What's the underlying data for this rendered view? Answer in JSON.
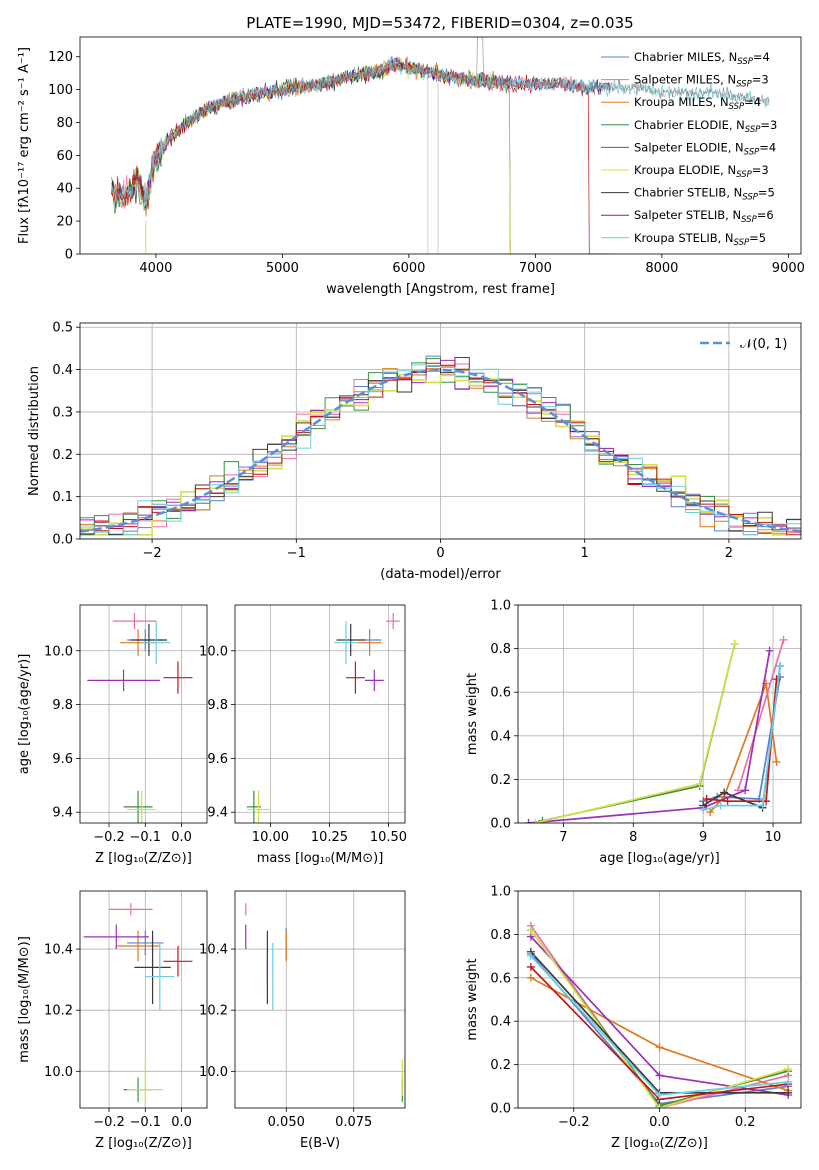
{
  "title": "PLATE=1990, MJD=53472, FIBERID=0304, z=0.035",
  "chart_data": [
    {
      "id": "spectrum",
      "type": "line",
      "xlabel": "wavelength [Angstrom, rest frame]",
      "ylabel": "Flux [fλ10⁻¹⁷ erg cm⁻² s⁻¹ A⁻¹]",
      "xlim": [
        3400,
        9100
      ],
      "ylim": [
        0,
        132
      ],
      "xticks": [
        4000,
        5000,
        6000,
        7000,
        8000,
        9000
      ],
      "yticks": [
        0,
        20,
        40,
        60,
        80,
        100,
        120
      ],
      "legend_position": "top-right",
      "continuum": [
        [
          3650,
          38
        ],
        [
          3750,
          35
        ],
        [
          3850,
          45
        ],
        [
          3920,
          30
        ],
        [
          3980,
          55
        ],
        [
          4100,
          70
        ],
        [
          4250,
          80
        ],
        [
          4400,
          88
        ],
        [
          4600,
          94
        ],
        [
          4800,
          97
        ],
        [
          5000,
          100
        ],
        [
          5200,
          102
        ],
        [
          5400,
          105
        ],
        [
          5600,
          109
        ],
        [
          5800,
          112
        ],
        [
          5900,
          116
        ],
        [
          6000,
          113
        ],
        [
          6200,
          110
        ],
        [
          6400,
          107
        ],
        [
          6600,
          105
        ],
        [
          6800,
          104
        ],
        [
          7000,
          103
        ],
        [
          7200,
          104
        ],
        [
          7400,
          101
        ],
        [
          7600,
          102
        ],
        [
          7800,
          101
        ],
        [
          8000,
          98
        ],
        [
          8200,
          98
        ],
        [
          8400,
          98
        ],
        [
          8600,
          96
        ],
        [
          8800,
          93
        ]
      ],
      "series": [
        {
          "name": "Chabrier MILES, N_SSP=4",
          "label_main": "Chabrier MILES, N",
          "label_sub": "SSP",
          "label_end": "=4",
          "color": "#5b7fd1",
          "drop_at": null
        },
        {
          "name": "Salpeter MILES, N_SSP=3",
          "label_main": "Salpeter MILES, N",
          "label_sub": "SSP",
          "label_end": "=3",
          "color": "#ee6ea6",
          "drop_at": null
        },
        {
          "name": "Kroupa MILES, N_SSP=4",
          "label_main": "Kroupa MILES, N",
          "label_sub": "SSP",
          "label_end": "=4",
          "color": "#e0791f",
          "drop_at": 6800
        },
        {
          "name": "Chabrier ELODIE, N_SSP=3",
          "label_main": "Chabrier ELODIE, N",
          "label_sub": "SSP",
          "label_end": "=3",
          "color": "#3f8f3f",
          "drop_at": 6800
        },
        {
          "name": "Salpeter ELODIE, N_SSP=4",
          "label_main": "Salpeter ELODIE, N",
          "label_sub": "SSP",
          "label_end": "=4",
          "color": "#9b30b8",
          "drop_at": 6800
        },
        {
          "name": "Kroupa ELODIE, N_SSP=3",
          "label_main": "Kroupa ELODIE, N",
          "label_sub": "SSP",
          "label_end": "=3",
          "color": "#d4e04a",
          "drop_at": 6800
        },
        {
          "name": "Chabrier STELIB, N_SSP=5",
          "label_main": "Chabrier STELIB, N",
          "label_sub": "SSP",
          "label_end": "=5",
          "color": "#3a3a3a",
          "drop_at": null
        },
        {
          "name": "Salpeter STELIB, N_SSP=6",
          "label_main": "Salpeter STELIB, N",
          "label_sub": "SSP",
          "label_end": "=6",
          "color": "#c01818",
          "drop_at": 7420
        },
        {
          "name": "Kroupa STELIB, N_SSP=5",
          "label_main": "Kroupa STELIB, N",
          "label_sub": "SSP",
          "label_end": "=5",
          "color": "#6ccfe0",
          "drop_at": null
        }
      ]
    },
    {
      "id": "residuals",
      "type": "histogram",
      "xlabel": "(data-model)/error",
      "ylabel": "Normed distribution",
      "xlim": [
        -2.5,
        2.5
      ],
      "ylim": [
        0,
        0.51
      ],
      "xticks": [
        -2,
        -1,
        0,
        1,
        2
      ],
      "yticks": [
        0.0,
        0.1,
        0.2,
        0.3,
        0.4,
        0.5
      ],
      "reference_label": "𝒩(0, 1)",
      "reference_color": "#5b8fd9"
    },
    {
      "id": "age-vs-Z",
      "type": "scatter-errorbar",
      "xlabel": "Z [log₁₀(Z/Z⊙)]",
      "ylabel": "age  [log₁₀(age/yr)]",
      "xlim": [
        -0.28,
        0.07
      ],
      "ylim": [
        9.36,
        10.17
      ],
      "xticks": [
        -0.2,
        -0.1,
        0.0
      ],
      "yticks": [
        9.4,
        9.6,
        9.8,
        10.0
      ],
      "points": [
        {
          "c": "#5b7fd1",
          "x": -0.1,
          "y": 10.04,
          "xe": 0.05,
          "ye": 0.04
        },
        {
          "c": "#ee6ea6",
          "x": -0.13,
          "y": 10.11,
          "xe": 0.06,
          "ye": 0.03
        },
        {
          "c": "#e0791f",
          "x": -0.12,
          "y": 10.03,
          "xe": 0.05,
          "ye": 0.05
        },
        {
          "c": "#3f8f3f",
          "x": -0.12,
          "y": 9.42,
          "xe": 0.04,
          "ye": 0.06
        },
        {
          "c": "#9b30b8",
          "x": -0.16,
          "y": 9.89,
          "xe": 0.1,
          "ye": 0.04
        },
        {
          "c": "#d4e04a",
          "x": -0.11,
          "y": 9.41,
          "xe": 0.04,
          "ye": 0.07
        },
        {
          "c": "#3a3a3a",
          "x": -0.09,
          "y": 10.04,
          "xe": 0.05,
          "ye": 0.06
        },
        {
          "c": "#c01818",
          "x": -0.01,
          "y": 9.9,
          "xe": 0.04,
          "ye": 0.06
        },
        {
          "c": "#6ccfe0",
          "x": -0.07,
          "y": 10.03,
          "xe": 0.04,
          "ye": 0.08
        }
      ]
    },
    {
      "id": "age-vs-mass",
      "type": "scatter-errorbar",
      "xlabel": "mass [log₁₀(M/M⊙)]",
      "xlim": [
        9.85,
        10.57
      ],
      "ylim": [
        9.36,
        10.17
      ],
      "xticks": [
        10.0,
        10.25,
        10.5
      ],
      "yticks": [
        9.4,
        9.6,
        9.8,
        10.0
      ],
      "points": [
        {
          "c": "#5b7fd1",
          "x": 10.42,
          "y": 10.04,
          "xe": 0.05,
          "ye": 0.04
        },
        {
          "c": "#ee6ea6",
          "x": 10.52,
          "y": 10.11,
          "xe": 0.03,
          "ye": 0.03
        },
        {
          "c": "#e0791f",
          "x": 10.42,
          "y": 10.03,
          "xe": 0.05,
          "ye": 0.05
        },
        {
          "c": "#3f8f3f",
          "x": 9.93,
          "y": 9.42,
          "xe": 0.03,
          "ye": 0.06
        },
        {
          "c": "#9b30b8",
          "x": 10.44,
          "y": 9.89,
          "xe": 0.04,
          "ye": 0.04
        },
        {
          "c": "#d4e04a",
          "x": 9.95,
          "y": 9.41,
          "xe": 0.05,
          "ye": 0.07
        },
        {
          "c": "#3a3a3a",
          "x": 10.34,
          "y": 10.04,
          "xe": 0.06,
          "ye": 0.06
        },
        {
          "c": "#c01818",
          "x": 10.36,
          "y": 9.9,
          "xe": 0.04,
          "ye": 0.06
        },
        {
          "c": "#6ccfe0",
          "x": 10.32,
          "y": 10.03,
          "xe": 0.05,
          "ye": 0.08
        }
      ]
    },
    {
      "id": "mass-weight-vs-age",
      "type": "line",
      "xlabel": "age  [log₁₀(age/yr)]",
      "ylabel": "mass weight",
      "xlim": [
        6.35,
        10.4
      ],
      "ylim": [
        0,
        1.0
      ],
      "xticks": [
        7,
        8,
        9,
        10
      ],
      "yticks": [
        0.0,
        0.2,
        0.4,
        0.6,
        0.8,
        1.0
      ],
      "series": [
        {
          "c": "#5b7fd1",
          "pts": [
            [
              9.0,
              0.1
            ],
            [
              9.2,
              0.12
            ],
            [
              9.8,
              0.11
            ],
            [
              10.1,
              0.67
            ]
          ]
        },
        {
          "c": "#ee6ea6",
          "pts": [
            [
              9.5,
              0.15
            ],
            [
              10.15,
              0.84
            ]
          ]
        },
        {
          "c": "#e0791f",
          "pts": [
            [
              9.1,
              0.05
            ],
            [
              9.3,
              0.12
            ],
            [
              9.9,
              0.64
            ],
            [
              10.05,
              0.28
            ]
          ]
        },
        {
          "c": "#3f8f3f",
          "pts": [
            [
              6.7,
              0.01
            ],
            [
              8.95,
              0.17
            ],
            [
              9.45,
              0.82
            ]
          ]
        },
        {
          "c": "#9b30b8",
          "pts": [
            [
              6.5,
              0.0
            ],
            [
              9.0,
              0.07
            ],
            [
              9.6,
              0.15
            ],
            [
              9.95,
              0.79
            ]
          ]
        },
        {
          "c": "#d4e04a",
          "pts": [
            [
              6.6,
              0.0
            ],
            [
              8.95,
              0.18
            ],
            [
              9.45,
              0.82
            ]
          ]
        },
        {
          "c": "#3a3a3a",
          "pts": [
            [
              9.0,
              0.08
            ],
            [
              9.3,
              0.14
            ],
            [
              9.85,
              0.07
            ],
            [
              10.1,
              0.72
            ]
          ]
        },
        {
          "c": "#c01818",
          "pts": [
            [
              9.05,
              0.11
            ],
            [
              9.35,
              0.1
            ],
            [
              9.9,
              0.1
            ],
            [
              10.05,
              0.66
            ]
          ]
        },
        {
          "c": "#6ccfe0",
          "pts": [
            [
              9.0,
              0.06
            ],
            [
              9.25,
              0.08
            ],
            [
              9.85,
              0.08
            ],
            [
              10.1,
              0.72
            ]
          ]
        }
      ]
    },
    {
      "id": "mass-vs-Z",
      "type": "scatter-errorbar",
      "xlabel": "Z [log₁₀(Z/Z⊙)]",
      "ylabel": "mass [log₁₀(M/M⊙)]",
      "xlim": [
        -0.28,
        0.07
      ],
      "ylim": [
        9.88,
        10.59
      ],
      "xticks": [
        -0.2,
        -0.1,
        0.0
      ],
      "yticks": [
        10.0,
        10.2,
        10.4
      ],
      "points": [
        {
          "c": "#5b7fd1",
          "x": -0.1,
          "y": 10.42,
          "xe": 0.05,
          "ye": 0.04
        },
        {
          "c": "#ee6ea6",
          "x": -0.14,
          "y": 10.53,
          "xe": 0.06,
          "ye": 0.02
        },
        {
          "c": "#e0791f",
          "x": -0.12,
          "y": 10.41,
          "xe": 0.06,
          "ye": 0.05
        },
        {
          "c": "#3f8f3f",
          "x": -0.12,
          "y": 9.94,
          "xe": 0.04,
          "ye": 0.04
        },
        {
          "c": "#9b30b8",
          "x": -0.18,
          "y": 10.44,
          "xe": 0.09,
          "ye": 0.04
        },
        {
          "c": "#d4e04a",
          "x": -0.1,
          "y": 9.94,
          "xe": 0.05,
          "ye": 0.1
        },
        {
          "c": "#3a3a3a",
          "x": -0.08,
          "y": 10.34,
          "xe": 0.05,
          "ye": 0.12
        },
        {
          "c": "#c01818",
          "x": -0.01,
          "y": 10.36,
          "xe": 0.04,
          "ye": 0.05
        },
        {
          "c": "#6ccfe0",
          "x": -0.06,
          "y": 10.31,
          "xe": 0.04,
          "ye": 0.11
        }
      ]
    },
    {
      "id": "mass-vs-EBV",
      "type": "scatter-errorbar",
      "xlabel": "E(B-V)",
      "xlim": [
        0.031,
        0.094
      ],
      "ylim": [
        9.88,
        10.59
      ],
      "xticks": [
        0.05,
        0.075
      ],
      "tick_labels": [
        "0.050",
        "0.075"
      ],
      "yticks": [
        10.0,
        10.2,
        10.4
      ],
      "points": [
        {
          "c": "#5b7fd1",
          "x": 0.05,
          "y": 10.42,
          "ye": 0.05
        },
        {
          "c": "#ee6ea6",
          "x": 0.035,
          "y": 10.53,
          "ye": 0.02
        },
        {
          "c": "#e0791f",
          "x": 0.05,
          "y": 10.41,
          "ye": 0.05
        },
        {
          "c": "#3f8f3f",
          "x": 0.093,
          "y": 9.94,
          "ye": 0.04
        },
        {
          "c": "#9b30b8",
          "x": 0.035,
          "y": 10.44,
          "ye": 0.04
        },
        {
          "c": "#d4e04a",
          "x": 0.093,
          "y": 9.98,
          "ye": 0.06
        },
        {
          "c": "#3a3a3a",
          "x": 0.043,
          "y": 10.34,
          "ye": 0.12
        },
        {
          "c": "#c01818",
          "x": 0.043,
          "y": 10.33,
          "ye": 0.05
        },
        {
          "c": "#6ccfe0",
          "x": 0.045,
          "y": 10.31,
          "ye": 0.11
        }
      ]
    },
    {
      "id": "mass-weight-vs-Z",
      "type": "line",
      "xlabel": "Z [log₁₀(Z/Z⊙)]",
      "ylabel": "mass weight",
      "xlim": [
        -0.33,
        0.33
      ],
      "ylim": [
        0,
        1.0
      ],
      "xticks": [
        -0.2,
        0.0,
        0.2
      ],
      "yticks": [
        0.0,
        0.2,
        0.4,
        0.6,
        0.8,
        1.0
      ],
      "series": [
        {
          "c": "#5b7fd1",
          "pts": [
            [
              -0.3,
              0.71
            ],
            [
              0.0,
              0.02
            ],
            [
              0.3,
              0.1
            ]
          ]
        },
        {
          "c": "#ee6ea6",
          "pts": [
            [
              -0.3,
              0.84
            ],
            [
              0.0,
              0.0
            ],
            [
              0.3,
              0.15
            ]
          ]
        },
        {
          "c": "#e0791f",
          "pts": [
            [
              -0.3,
              0.6
            ],
            [
              0.0,
              0.28
            ],
            [
              0.3,
              0.08
            ]
          ]
        },
        {
          "c": "#3f8f3f",
          "pts": [
            [
              -0.3,
              0.82
            ],
            [
              0.0,
              0.01
            ],
            [
              0.3,
              0.17
            ]
          ]
        },
        {
          "c": "#9b30b8",
          "pts": [
            [
              -0.3,
              0.79
            ],
            [
              0.0,
              0.15
            ],
            [
              0.3,
              0.06
            ]
          ]
        },
        {
          "c": "#d4e04a",
          "pts": [
            [
              -0.3,
              0.82
            ],
            [
              0.0,
              0.0
            ],
            [
              0.3,
              0.18
            ]
          ]
        },
        {
          "c": "#3a3a3a",
          "pts": [
            [
              -0.3,
              0.72
            ],
            [
              0.0,
              0.07
            ],
            [
              0.3,
              0.07
            ]
          ]
        },
        {
          "c": "#c01818",
          "pts": [
            [
              -0.3,
              0.65
            ],
            [
              0.0,
              0.04
            ],
            [
              0.3,
              0.11
            ]
          ]
        },
        {
          "c": "#6ccfe0",
          "pts": [
            [
              -0.3,
              0.7
            ],
            [
              0.0,
              0.06
            ],
            [
              0.3,
              0.12
            ]
          ]
        }
      ]
    }
  ]
}
